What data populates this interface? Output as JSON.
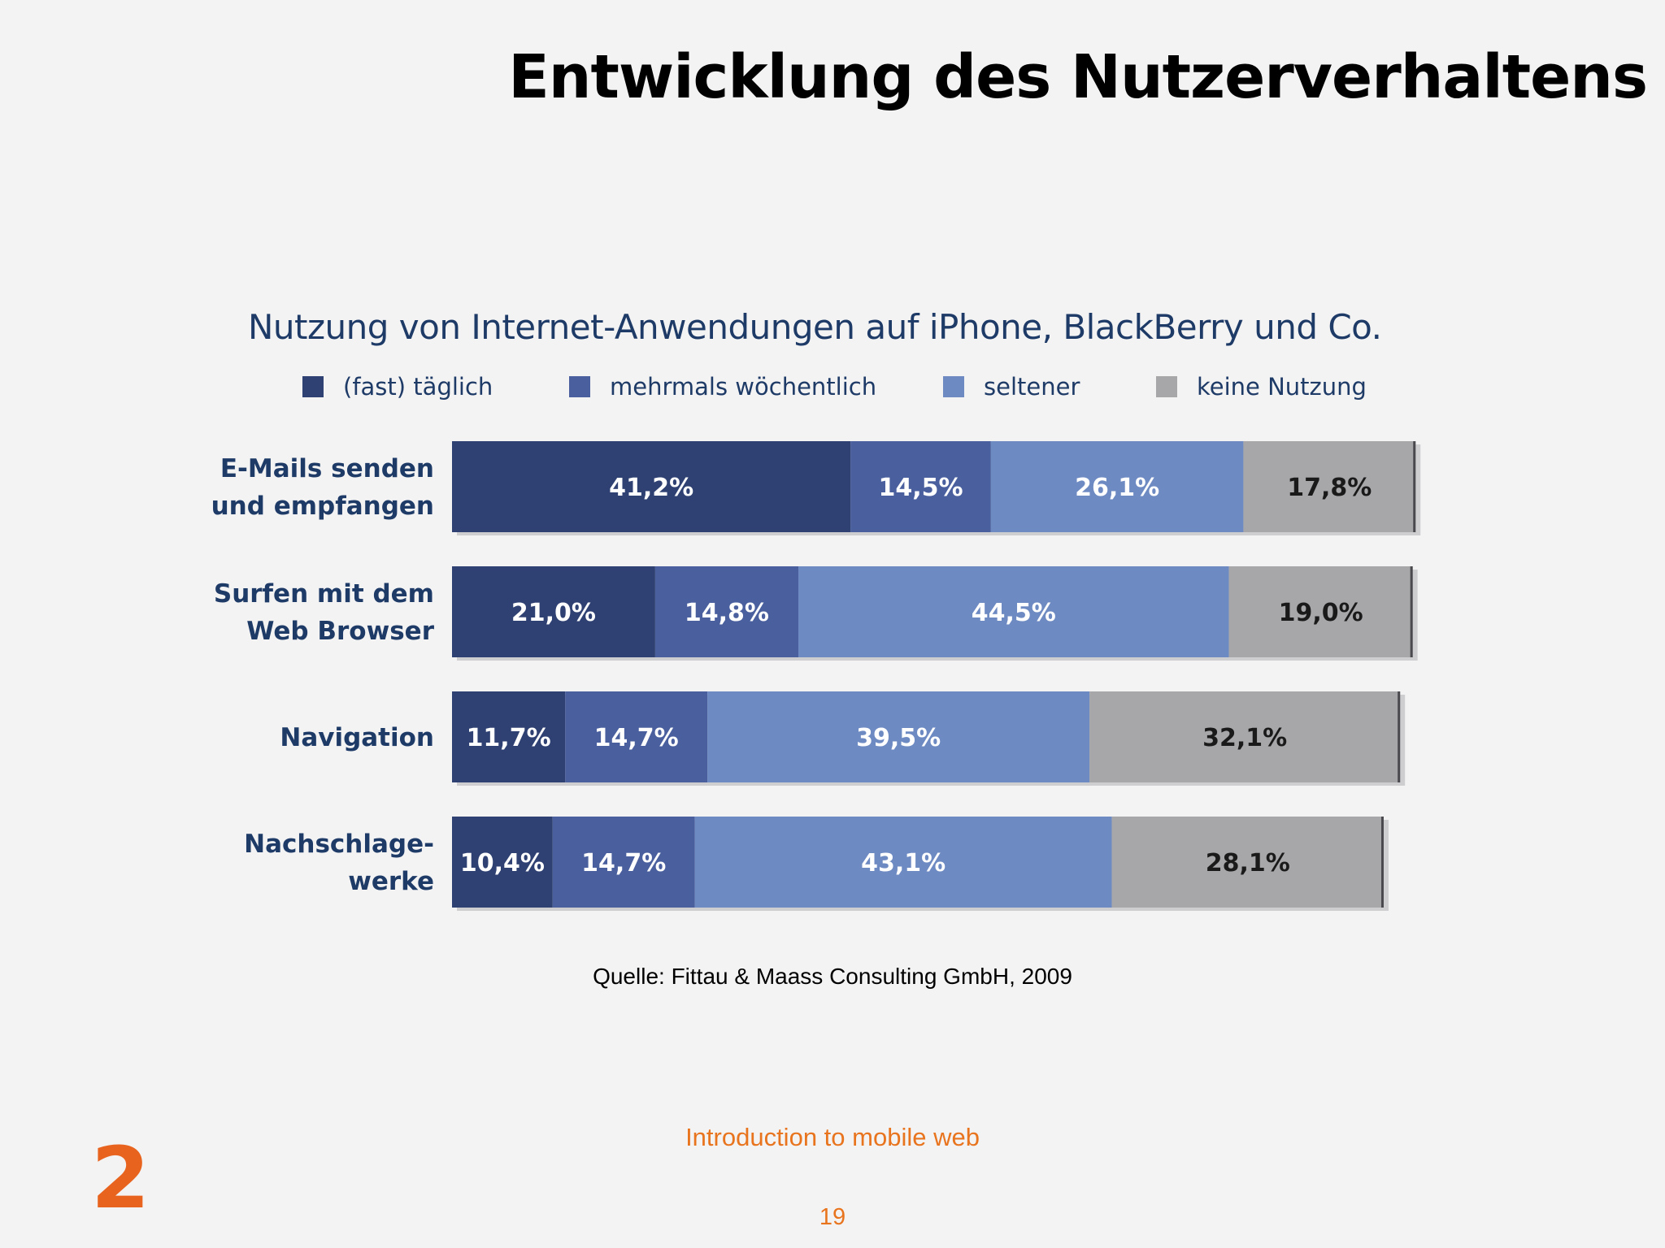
{
  "slide": {
    "title": "Entwicklung des Nutzerverhaltens",
    "source": "Quelle: Fittau & Maass Consulting GmbH, 2009",
    "footer": "Introduction to mobile web",
    "page_number": "19",
    "section_number": "2"
  },
  "chart_data": {
    "type": "bar",
    "orientation": "horizontal",
    "stacked": true,
    "title": "Nutzung von Internet-Anwendungen auf iPhone, BlackBerry und Co.",
    "xlabel": "",
    "ylabel": "",
    "legend_position": "top",
    "grid": false,
    "categories": [
      [
        "E-Mails senden",
        "und empfangen"
      ],
      [
        "Surfen mit dem",
        "Web Browser"
      ],
      [
        "Navigation"
      ],
      [
        "Nachschlage-",
        "werke"
      ]
    ],
    "series": [
      {
        "name": "(fast) täglich",
        "color": "#2f4172",
        "values": [
          41.2,
          21.0,
          11.7,
          10.4
        ],
        "labels": [
          "41,2%",
          "21,0%",
          "11,7%",
          "10,4%"
        ]
      },
      {
        "name": "mehrmals wöchentlich",
        "color": "#4a5f9e",
        "values": [
          14.5,
          14.8,
          14.7,
          14.7
        ],
        "labels": [
          "14,5%",
          "14,8%",
          "14,7%",
          "14,7%"
        ]
      },
      {
        "name": "seltener",
        "color": "#6e8ac2",
        "values": [
          26.1,
          44.5,
          39.5,
          43.1
        ],
        "labels": [
          "26,1%",
          "44,5%",
          "39,5%",
          "43,1%"
        ]
      },
      {
        "name": "keine Nutzung",
        "color": "#a7a7aa",
        "values": [
          17.8,
          19.0,
          32.1,
          28.1
        ],
        "labels": [
          "17,8%",
          "19,0%",
          "32,1%",
          "28,1%"
        ]
      }
    ]
  }
}
